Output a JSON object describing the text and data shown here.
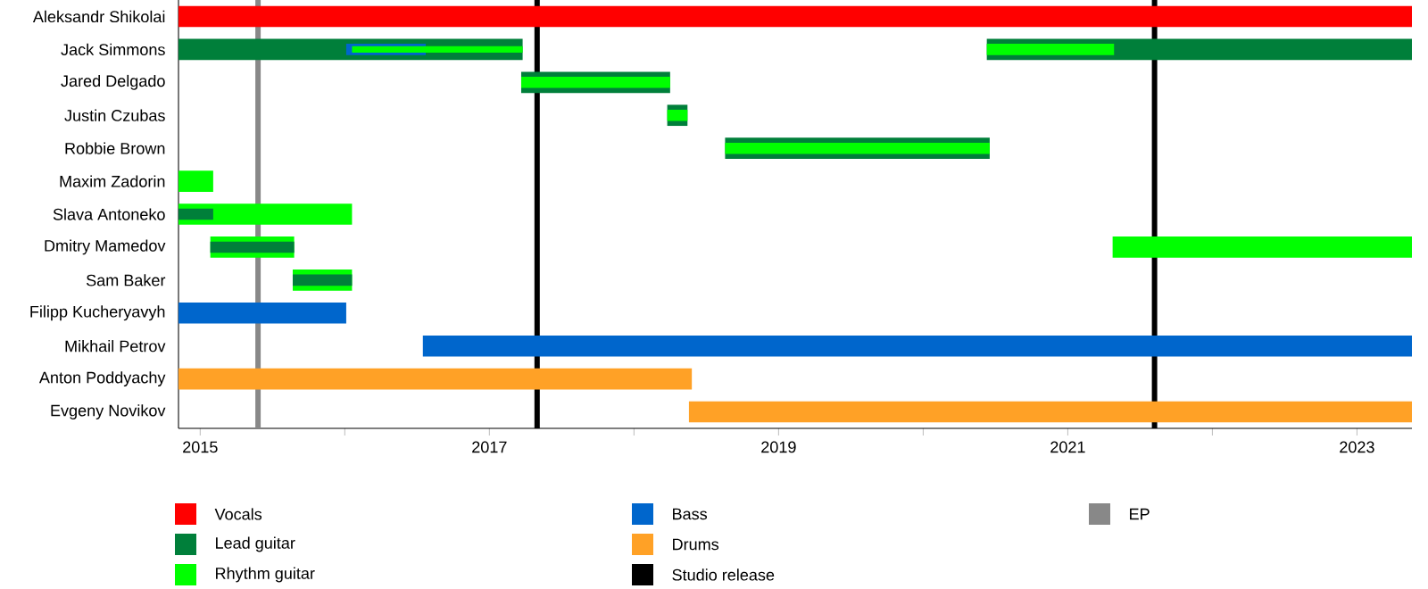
{
  "chart_data": {
    "type": "bar",
    "orientation": "horizontal",
    "legend": "bottom",
    "categories": [
      "Aleksandr Shikolai",
      "Jack Simmons",
      "Jared Delgado",
      "Justin Czubas",
      "Robbie Brown",
      "Maxim Zadorin",
      "Slava Antoneko",
      "Dmitry Mamedov",
      "Sam Baker",
      "Filipp Kucheryavyh",
      "Mikhail Petrov",
      "Anton Poddyachy",
      "Evgeny Novikov"
    ],
    "xlim": [
      2014.85,
      2023.38
    ],
    "xticks": [
      2015,
      {
        "value": 2016,
        "label": null
      },
      2017,
      {
        "value": 2018,
        "label": null
      },
      2019,
      {
        "value": 2020,
        "label": null
      },
      2021,
      {
        "value": 2022,
        "label": null
      },
      2023
    ],
    "series": [
      {
        "name": "Vocals",
        "color": "#ff0000",
        "base": [
          2014.85,
          null,
          null,
          null,
          null,
          null,
          null,
          null,
          null,
          null,
          null,
          null,
          null
        ],
        "values": [
          8.53,
          null,
          null,
          null,
          null,
          null,
          null,
          null,
          null,
          null,
          null,
          null,
          null
        ]
      },
      {
        "name": "Lead guitar",
        "color": "#007f3a",
        "base": [
          null,
          2014.85,
          2017.22,
          2018.23,
          2018.63,
          null,
          null,
          null,
          null,
          null,
          null,
          null,
          null
        ],
        "values": [
          null,
          2.38,
          1.03,
          0.14,
          1.83,
          null,
          null,
          null,
          null,
          null,
          null,
          null,
          null
        ]
      },
      {
        "color": "#007f3a",
        "base": [
          null,
          2020.44,
          null,
          null,
          null,
          null,
          null,
          null,
          null,
          null,
          null,
          null,
          null
        ],
        "values": [
          null,
          2.94,
          null,
          null,
          null,
          null,
          null,
          null,
          null,
          null,
          null,
          null,
          null
        ]
      },
      {
        "name": "Rhythm guitar",
        "color": "#00ff00",
        "base": [
          null,
          null,
          null,
          null,
          null,
          2014.85,
          2014.85,
          2015.07,
          2015.64,
          null,
          null,
          null,
          null
        ],
        "values": [
          null,
          null,
          null,
          null,
          null,
          0.24,
          1.2,
          0.58,
          0.41,
          null,
          null,
          null,
          null
        ]
      },
      {
        "color": "#00ff00",
        "base": [
          null,
          null,
          null,
          null,
          null,
          null,
          null,
          2021.31,
          null,
          null,
          null,
          null,
          null
        ],
        "values": [
          null,
          null,
          null,
          null,
          null,
          null,
          null,
          2.07,
          null,
          null,
          null,
          null,
          null
        ]
      },
      {
        "name": "Bass",
        "color": "#0066cc",
        "base": [
          null,
          null,
          null,
          null,
          null,
          null,
          null,
          null,
          null,
          2014.85,
          2016.54,
          null,
          null
        ],
        "values": [
          null,
          null,
          null,
          null,
          null,
          null,
          null,
          null,
          null,
          1.16,
          6.84,
          null,
          null
        ]
      },
      {
        "name": "Drums",
        "color": "#ffa126",
        "base": [
          null,
          null,
          null,
          null,
          null,
          null,
          null,
          null,
          null,
          null,
          null,
          2014.85,
          2018.38
        ],
        "values": [
          null,
          null,
          null,
          null,
          null,
          null,
          null,
          null,
          null,
          null,
          null,
          3.55,
          5.0
        ]
      },
      {
        "color": "#007f3a",
        "base": [
          null,
          null,
          null,
          null,
          null,
          null,
          2014.85,
          2015.07,
          2015.64,
          null,
          null,
          null,
          null
        ],
        "values": [
          null,
          null,
          null,
          null,
          null,
          null,
          0.24,
          0.58,
          0.41,
          null,
          null,
          null,
          null
        ]
      },
      {
        "color": "#0066cc",
        "base": [
          null,
          2016.01,
          null,
          null,
          null,
          null,
          null,
          null,
          null,
          null,
          null,
          null,
          null
        ],
        "values": [
          null,
          0.55,
          null,
          null,
          null,
          null,
          null,
          null,
          null,
          null,
          null,
          null,
          null
        ]
      },
      {
        "color": "#00ff00",
        "base": [
          null,
          2016.05,
          2017.22,
          2018.23,
          2018.63,
          null,
          null,
          null,
          null,
          null,
          null,
          null,
          null
        ],
        "values": [
          null,
          1.18,
          1.03,
          0.14,
          1.83,
          null,
          null,
          null,
          null,
          null,
          null,
          null,
          null
        ]
      },
      {
        "color": "#00ff00",
        "base": [
          null,
          2020.44,
          null,
          null,
          null,
          null,
          null,
          null,
          null,
          null,
          null,
          null,
          null
        ],
        "values": [
          null,
          0.88,
          null,
          null,
          null,
          null,
          null,
          null,
          null,
          null,
          null,
          null,
          null
        ]
      }
    ],
    "ref_lines": [
      {
        "axis": "x",
        "value": 2017.33,
        "label": "Studio release",
        "color": "#000000"
      },
      {
        "axis": "x",
        "value": 2021.6,
        "color": "#000000"
      },
      {
        "axis": "x",
        "value": 2015.4,
        "label": "EP",
        "color": "#888888"
      }
    ]
  }
}
